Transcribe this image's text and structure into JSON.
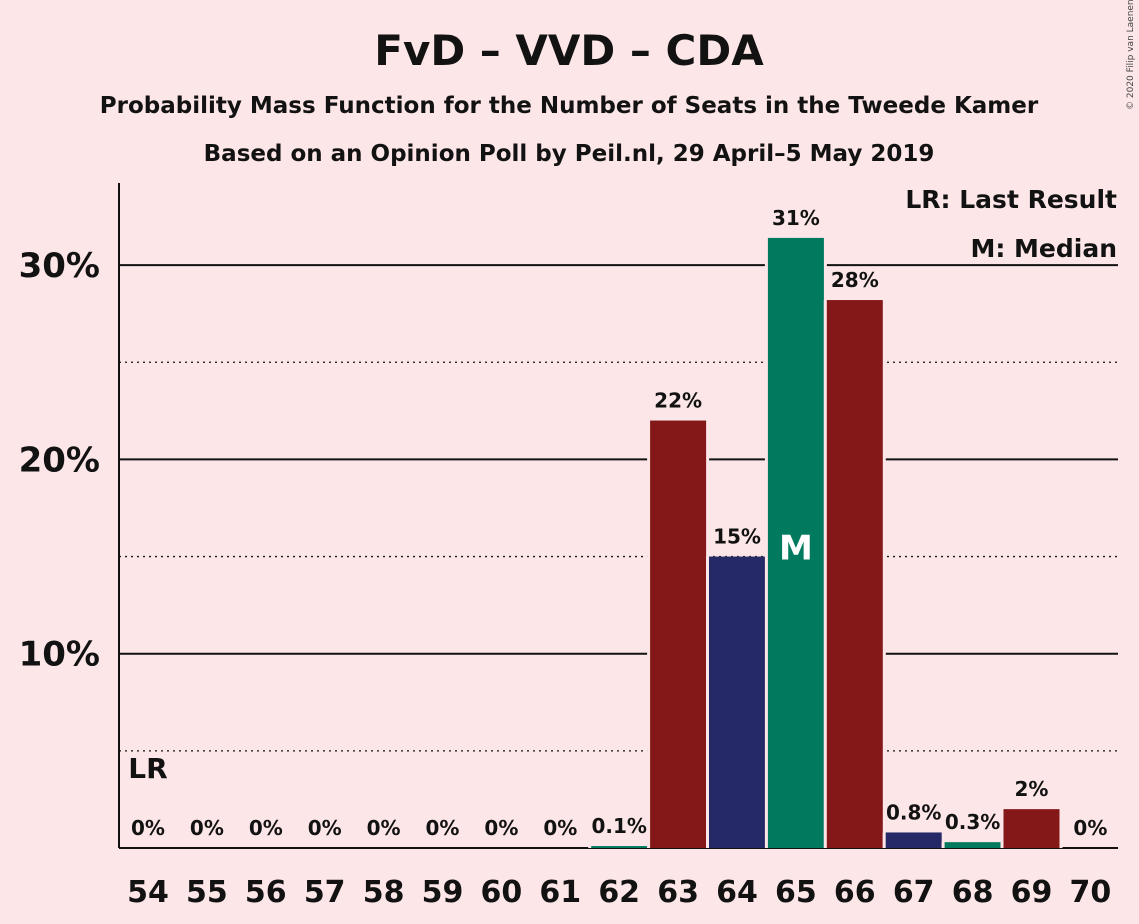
{
  "copyright": "© 2020 Filip van Laenen",
  "chart_data": {
    "type": "bar",
    "title": "FvD – VVD – CDA",
    "subtitle": "Probability Mass Function for the Number of Seats in the Tweede Kamer",
    "subtitle2": "Based on an Opinion Poll by Peil.nl, 29 April–5 May 2019",
    "categories": [
      "54",
      "55",
      "56",
      "57",
      "58",
      "59",
      "60",
      "61",
      "62",
      "63",
      "64",
      "65",
      "66",
      "67",
      "68",
      "69",
      "70"
    ],
    "values": [
      0,
      0,
      0,
      0,
      0,
      0,
      0,
      0,
      0.1,
      22,
      15,
      31.4,
      28.2,
      0.8,
      0.3,
      2,
      0
    ],
    "labels": [
      "0%",
      "0%",
      "0%",
      "0%",
      "0%",
      "0%",
      "0%",
      "0%",
      "0.1%",
      "22%",
      "15%",
      "31%",
      "28%",
      "0.8%",
      "0.3%",
      "2%",
      "0%"
    ],
    "colors": [
      "#841717",
      "#252a66",
      "#007a5f",
      "#841717",
      "#252a66",
      "#007a5f",
      "#841717",
      "#252a66",
      "#007a5f",
      "#841717",
      "#252a66",
      "#007a5f",
      "#841717",
      "#252a66",
      "#007a5f",
      "#841717",
      "#252a66"
    ],
    "yticks": [
      10,
      20,
      30
    ],
    "ytick_labels": [
      "10%",
      "20%",
      "30%"
    ],
    "ylim": [
      0,
      34
    ],
    "last_result_category": "54",
    "median_category": "65",
    "lr_marker": "LR",
    "median_marker": "M",
    "legend": [
      "LR: Last Result",
      "M: Median"
    ],
    "legend_placement": "top-right"
  }
}
